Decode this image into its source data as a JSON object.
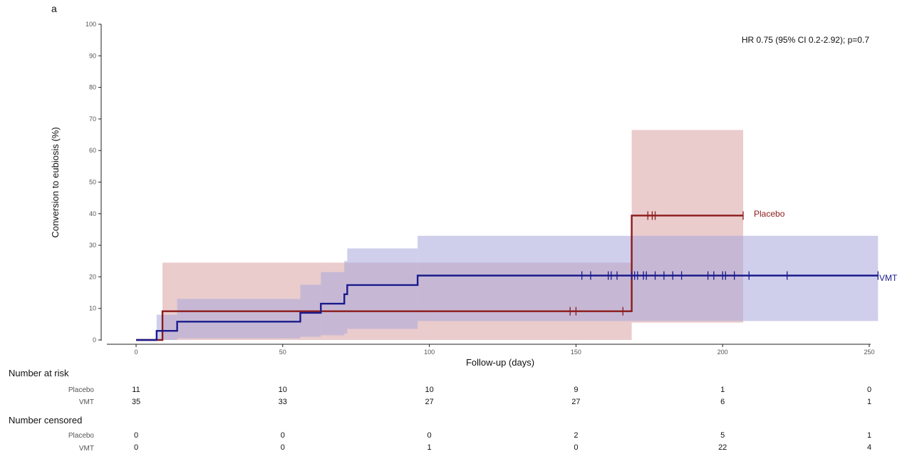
{
  "panel_label": "a",
  "chart_data": {
    "type": "line",
    "subtype": "kaplan-meier cumulative incidence step curves with confidence bands",
    "ylabel": "Conversion to eubiosis (%)",
    "xlabel": "Follow-up (days)",
    "xlim": [
      -10,
      252
    ],
    "ylim": [
      0,
      100
    ],
    "x_ticks": [
      0,
      50,
      100,
      150,
      200,
      250
    ],
    "y_ticks": [
      0,
      10,
      20,
      30,
      40,
      50,
      60,
      70,
      80,
      90,
      100
    ],
    "annotation": "HR 0.75 (95% CI 0.2-2.92); p=0.7",
    "grid": false,
    "series": [
      {
        "name": "Placebo",
        "color": "#8b1a1a",
        "band_color": "#d9a3a3",
        "steps": [
          [
            0,
            0
          ],
          [
            9,
            9.1
          ],
          [
            169,
            39.4
          ],
          [
            207,
            39.4
          ]
        ],
        "ci_band": [
          {
            "x0": 9,
            "x1": 169,
            "lower": 0,
            "upper": 24.5
          },
          {
            "x0": 169,
            "x1": 207,
            "lower": 5.5,
            "upper": 66.5
          }
        ],
        "censor_times": [
          148,
          150,
          166,
          174.5,
          176,
          177,
          207
        ]
      },
      {
        "name": "VMT",
        "color": "#1a1a8c",
        "band_color": "#a8a8dc",
        "steps": [
          [
            0,
            0
          ],
          [
            7,
            2.9
          ],
          [
            14,
            5.8
          ],
          [
            56,
            8.6
          ],
          [
            63,
            11.5
          ],
          [
            71,
            14.5
          ],
          [
            72,
            17.4
          ],
          [
            96,
            20.4
          ],
          [
            253,
            20.4
          ]
        ],
        "ci_band": [
          {
            "x0": 7,
            "x1": 14,
            "lower": 0,
            "upper": 8
          },
          {
            "x0": 14,
            "x1": 56,
            "lower": 0.5,
            "upper": 13
          },
          {
            "x0": 56,
            "x1": 63,
            "lower": 1,
            "upper": 17.5
          },
          {
            "x0": 63,
            "x1": 71,
            "lower": 1.5,
            "upper": 21.5
          },
          {
            "x0": 71,
            "x1": 72,
            "lower": 2,
            "upper": 25
          },
          {
            "x0": 72,
            "x1": 96,
            "lower": 3.5,
            "upper": 29
          },
          {
            "x0": 96,
            "x1": 253,
            "lower": 6,
            "upper": 33
          }
        ],
        "censor_times": [
          152,
          155,
          161,
          162,
          164,
          169,
          170,
          171,
          173,
          174,
          177,
          180,
          183,
          186,
          195,
          197,
          200,
          201,
          204,
          209,
          222,
          253
        ]
      }
    ]
  },
  "risk_table": {
    "title": "Number at risk",
    "times": [
      0,
      50,
      100,
      150,
      200,
      250
    ],
    "rows": [
      {
        "label": "Placebo",
        "values": [
          "11",
          "10",
          "10",
          "9",
          "1",
          "0"
        ]
      },
      {
        "label": "VMT",
        "values": [
          "35",
          "33",
          "27",
          "27",
          "6",
          "1"
        ]
      }
    ]
  },
  "censored_table": {
    "title": "Number censored",
    "times": [
      0,
      50,
      100,
      150,
      200,
      250
    ],
    "rows": [
      {
        "label": "Placebo",
        "values": [
          "0",
          "0",
          "0",
          "2",
          "5",
          "1"
        ]
      },
      {
        "label": "VMT",
        "values": [
          "0",
          "0",
          "1",
          "0",
          "22",
          "4"
        ]
      }
    ]
  }
}
